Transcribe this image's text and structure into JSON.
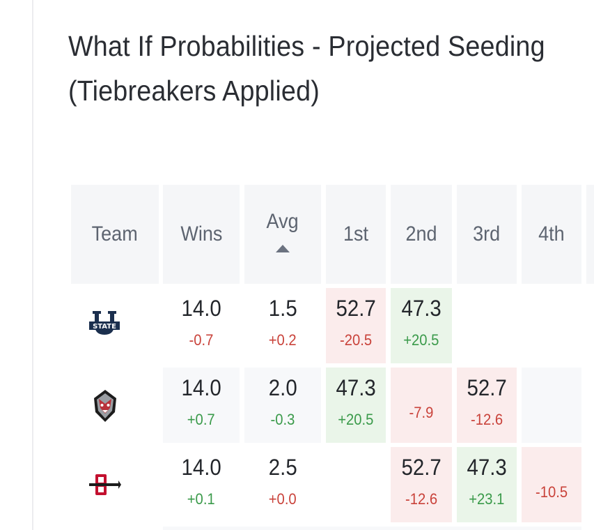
{
  "title": {
    "line1": "What If Probabilities - Projected Seeding",
    "line2": "(Tiebreakers Applied)"
  },
  "table": {
    "headers": {
      "team": "Team",
      "wins": "Wins",
      "avg": "Avg",
      "first": "1st",
      "second": "2nd",
      "third": "3rd",
      "fourth": "4th"
    },
    "sort": {
      "column": "Avg",
      "direction": "ascending"
    },
    "rows": [
      {
        "team_logo": "utah-state-logo",
        "wins": {
          "value": "14.0",
          "delta": "-0.7"
        },
        "avg": {
          "value": "1.5",
          "delta": "+0.2"
        },
        "first": {
          "value": "52.7",
          "delta": "-20.5"
        },
        "second": {
          "value": "47.3",
          "delta": "+20.5"
        },
        "third": {
          "value": "",
          "delta": ""
        },
        "fourth": {
          "value": "",
          "delta": ""
        }
      },
      {
        "team_logo": "new-mexico-lobo-logo",
        "wins": {
          "value": "14.0",
          "delta": "+0.7"
        },
        "avg": {
          "value": "2.0",
          "delta": "-0.3"
        },
        "first": {
          "value": "47.3",
          "delta": "+20.5"
        },
        "second": {
          "value": "",
          "delta": "-7.9"
        },
        "third": {
          "value": "52.7",
          "delta": "-12.6"
        },
        "fourth": {
          "value": "",
          "delta": ""
        }
      },
      {
        "team_logo": "san-diego-state-logo",
        "wins": {
          "value": "14.0",
          "delta": "+0.1"
        },
        "avg": {
          "value": "2.5",
          "delta": "+0.0"
        },
        "first": {
          "value": "",
          "delta": ""
        },
        "second": {
          "value": "52.7",
          "delta": "-12.6"
        },
        "third": {
          "value": "47.3",
          "delta": "+23.1"
        },
        "fourth": {
          "value": "",
          "delta": "-10.5"
        }
      }
    ]
  },
  "colors": {
    "positive": "#3a9a4a",
    "negative": "#c9423a",
    "positive_bg": "#eaf5e9",
    "negative_bg": "#fbecec",
    "header_bg": "#f5f6f8"
  }
}
